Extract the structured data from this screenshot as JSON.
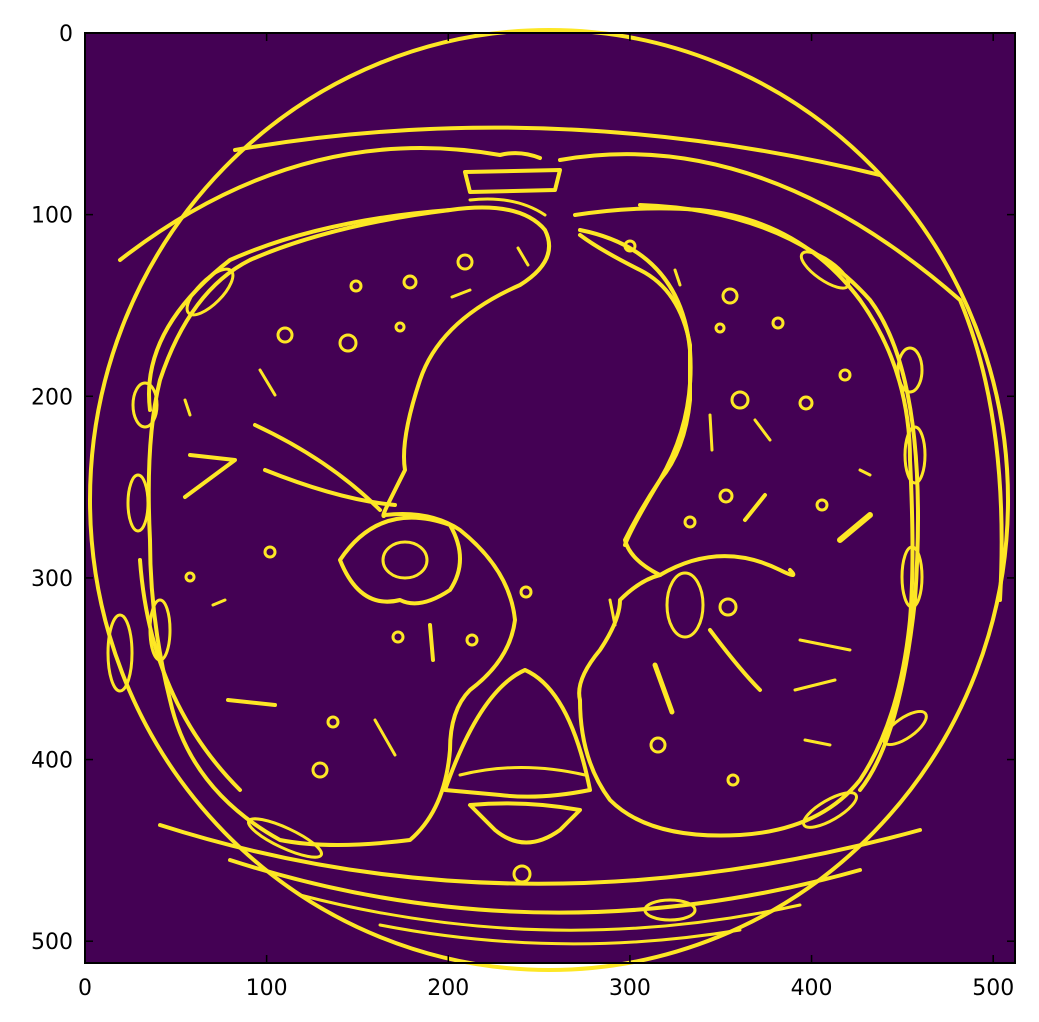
{
  "image": {
    "colormap": "viridis",
    "background_color": "#440154",
    "edge_color": "#fde725",
    "content": "binary edge map of axial chest CT slice"
  },
  "axes": {
    "x_range": [
      0,
      512
    ],
    "y_range": [
      0,
      512
    ],
    "y_inverted": true,
    "x_ticks": [
      {
        "value": 0,
        "label": "0"
      },
      {
        "value": 100,
        "label": "100"
      },
      {
        "value": 200,
        "label": "200"
      },
      {
        "value": 300,
        "label": "300"
      },
      {
        "value": 400,
        "label": "400"
      },
      {
        "value": 500,
        "label": "500"
      }
    ],
    "y_ticks": [
      {
        "value": 0,
        "label": "0"
      },
      {
        "value": 100,
        "label": "100"
      },
      {
        "value": 200,
        "label": "200"
      },
      {
        "value": 300,
        "label": "300"
      },
      {
        "value": 400,
        "label": "400"
      },
      {
        "value": 500,
        "label": "500"
      }
    ]
  }
}
